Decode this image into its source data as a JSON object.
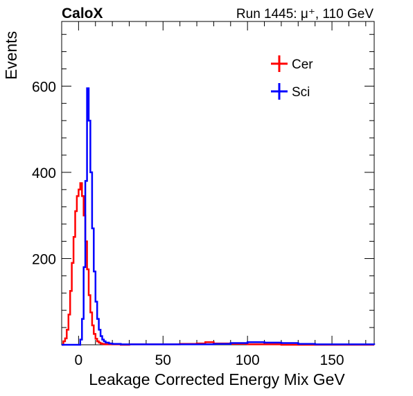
{
  "chart_data": {
    "type": "line",
    "title": "CaloX",
    "subtitle": "Run 1445: μ⁺, 110 GeV",
    "xlabel": "Leakage Corrected Energy Mix GeV",
    "ylabel": "Events",
    "xlim": [
      -10,
      175
    ],
    "ylim": [
      0,
      750
    ],
    "x_ticks": [
      0,
      50,
      100,
      150
    ],
    "x_tick_labels": [
      "0",
      "50",
      "100",
      "150"
    ],
    "y_ticks": [
      200,
      400,
      600
    ],
    "y_tick_labels": [
      "200",
      "400",
      "600"
    ],
    "legend_position": "top-right",
    "grid": false,
    "series": [
      {
        "name": "Cer",
        "color": "#ff0000",
        "x": [
          -10,
          -9,
          -8,
          -7,
          -6,
          -5,
          -4,
          -3,
          -2,
          -1,
          0,
          1,
          2,
          3,
          4,
          5,
          6,
          7,
          8,
          9,
          10,
          11,
          12,
          13,
          14,
          15,
          17,
          20,
          25,
          30,
          40,
          50,
          60,
          70,
          75,
          80,
          90,
          100,
          110,
          120,
          130,
          140,
          150,
          160,
          175
        ],
        "y": [
          0,
          8,
          15,
          35,
          70,
          125,
          190,
          250,
          310,
          345,
          360,
          375,
          345,
          300,
          240,
          175,
          115,
          75,
          45,
          25,
          14,
          8,
          5,
          3,
          2,
          1,
          1,
          1,
          0,
          1,
          1,
          1,
          2,
          3,
          6,
          3,
          2,
          1,
          1,
          0,
          0,
          0,
          0,
          0,
          0
        ]
      },
      {
        "name": "Sci",
        "color": "#0000ff",
        "x": [
          -10,
          0,
          1,
          2,
          3,
          4,
          5,
          6,
          7,
          8,
          9,
          10,
          11,
          12,
          13,
          14,
          15,
          16,
          18,
          20,
          25,
          30,
          40,
          50,
          60,
          70,
          80,
          90,
          100,
          110,
          120,
          130,
          140,
          150,
          160,
          175
        ],
        "y": [
          0,
          0,
          12,
          60,
          180,
          380,
          595,
          520,
          400,
          270,
          170,
          100,
          60,
          35,
          20,
          12,
          8,
          5,
          3,
          2,
          1,
          1,
          1,
          1,
          1,
          1,
          2,
          4,
          6,
          5,
          4,
          2,
          1,
          1,
          1,
          0
        ]
      }
    ]
  }
}
